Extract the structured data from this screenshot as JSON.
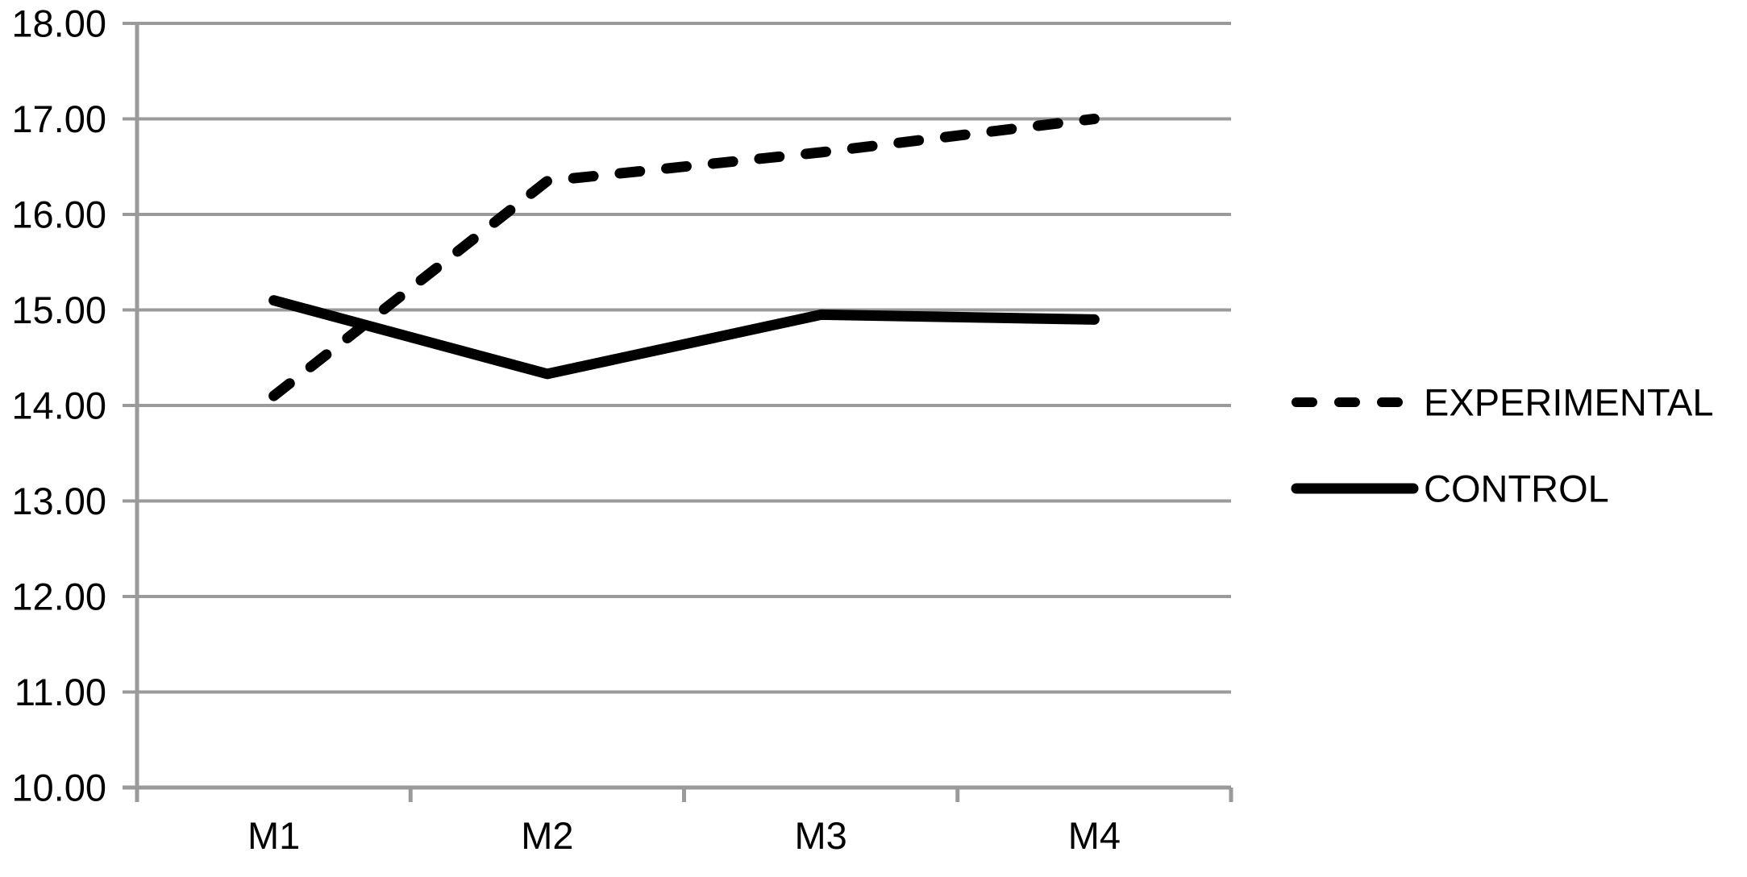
{
  "chart_data": {
    "type": "line",
    "categories": [
      "M1",
      "M2",
      "M3",
      "M4"
    ],
    "series": [
      {
        "name": "EXPERIMENTAL",
        "style": "dashed",
        "values": [
          14.1,
          16.35,
          16.65,
          17.0
        ]
      },
      {
        "name": "CONTROL",
        "style": "solid",
        "values": [
          15.1,
          14.33,
          14.95,
          14.9
        ]
      }
    ],
    "title": "",
    "xlabel": "",
    "ylabel": "",
    "ylim": [
      10,
      18
    ],
    "ytick_step": 1,
    "ytick_labels": [
      "10.00",
      "11.00",
      "12.00",
      "13.00",
      "14.00",
      "15.00",
      "16.00",
      "17.00",
      "18.00"
    ],
    "grid": true,
    "legend_position": "right",
    "legend": [
      "EXPERIMENTAL",
      "CONTROL"
    ],
    "colors": {
      "series": "#000000",
      "grid": "#9a9a9a",
      "axis": "#9a9a9a",
      "text": "#000000",
      "background": "#ffffff"
    }
  }
}
